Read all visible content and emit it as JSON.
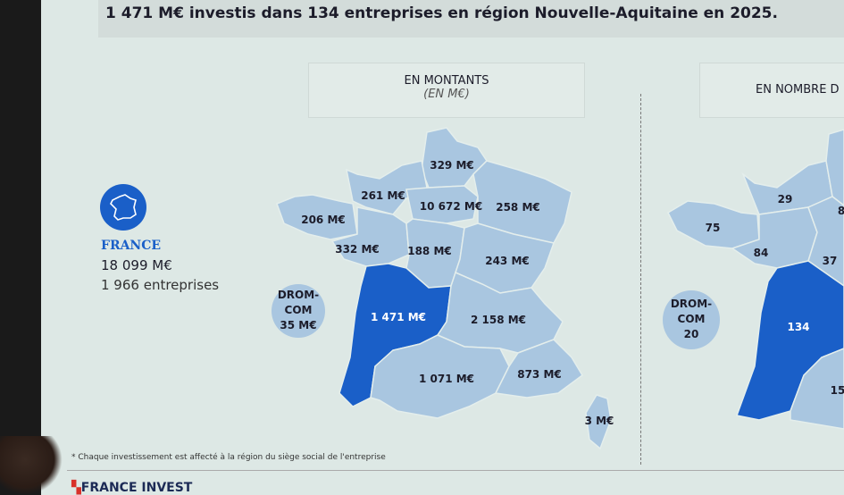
{
  "title": "1 471 M€ investis dans 134 entreprises en région Nouvelle-Aquitaine en 2025.",
  "colors": {
    "highlight": "#1a5fc8",
    "region": "#a9c6e0",
    "background": "#dde8e5"
  },
  "france": {
    "icon": "france-map-icon",
    "label": "FRANCE",
    "amount": "18 099 M€",
    "companies": "1 966 entreprises"
  },
  "amounts": {
    "header": "EN MONTANTS",
    "unit": "(EN M€)",
    "drom": [
      "DROM-",
      "COM",
      "35 M€"
    ],
    "regions": {
      "hdf": "329 M€",
      "normandie": "261 M€",
      "bretagne": "206 M€",
      "pdl": "332 M€",
      "idf": "10 672 M€",
      "grandest": "258 M€",
      "centre": "188 M€",
      "bfc": "243 M€",
      "na": "1 471 M€",
      "ara": "2 158 M€",
      "occitanie": "1 071 M€",
      "paca": "873 M€",
      "corse": "3 M€"
    }
  },
  "counts": {
    "header": "EN NOMBRE D",
    "drom": [
      "DROM-",
      "COM",
      "20"
    ],
    "regions": {
      "normandie": "29",
      "bretagne": "75",
      "pdl": "84",
      "centre": "37",
      "na": "134",
      "idf": "8",
      "occitanie": "15"
    }
  },
  "footnote": "* Chaque investissement est affecté à la région du siège social de l'entreprise",
  "logo": "FRANCE INVEST"
}
